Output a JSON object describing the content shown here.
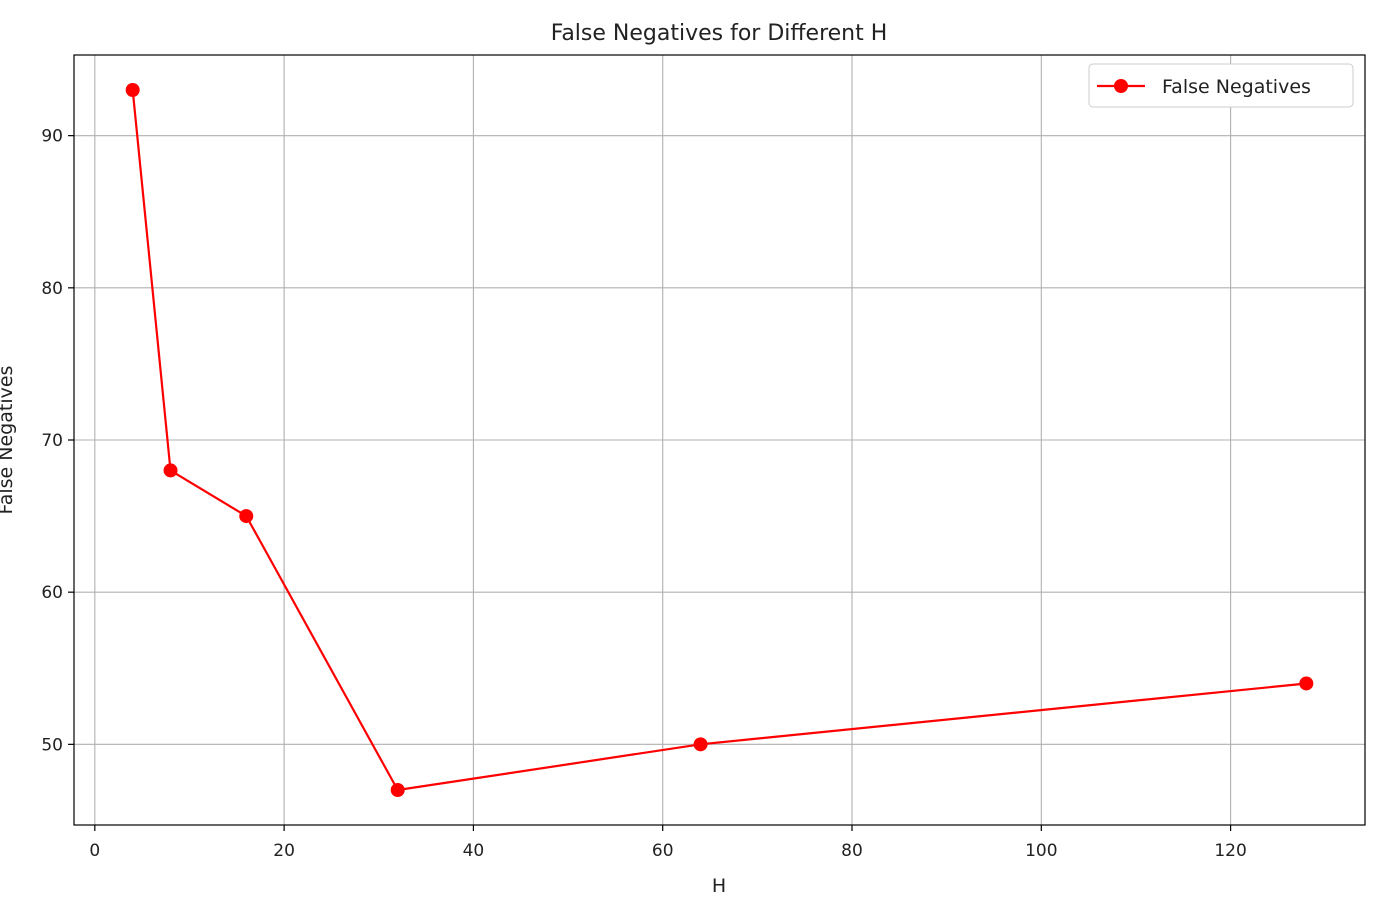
{
  "chart_data": {
    "type": "line",
    "title": "False Negatives for Different H",
    "xlabel": "H",
    "ylabel": "False Negatives",
    "xlim": [
      -2.2,
      134.2
    ],
    "ylim": [
      44.7,
      95.3
    ],
    "xticks": [
      0,
      20,
      40,
      60,
      80,
      100,
      120
    ],
    "yticks": [
      50,
      60,
      70,
      80,
      90
    ],
    "grid": true,
    "legend_position": "top-right",
    "series": [
      {
        "name": "False Negatives",
        "color": "#ff0000",
        "marker": "circle",
        "x": [
          4,
          8,
          16,
          32,
          64,
          128
        ],
        "y": [
          93,
          68,
          65,
          47,
          50,
          54
        ]
      }
    ]
  }
}
